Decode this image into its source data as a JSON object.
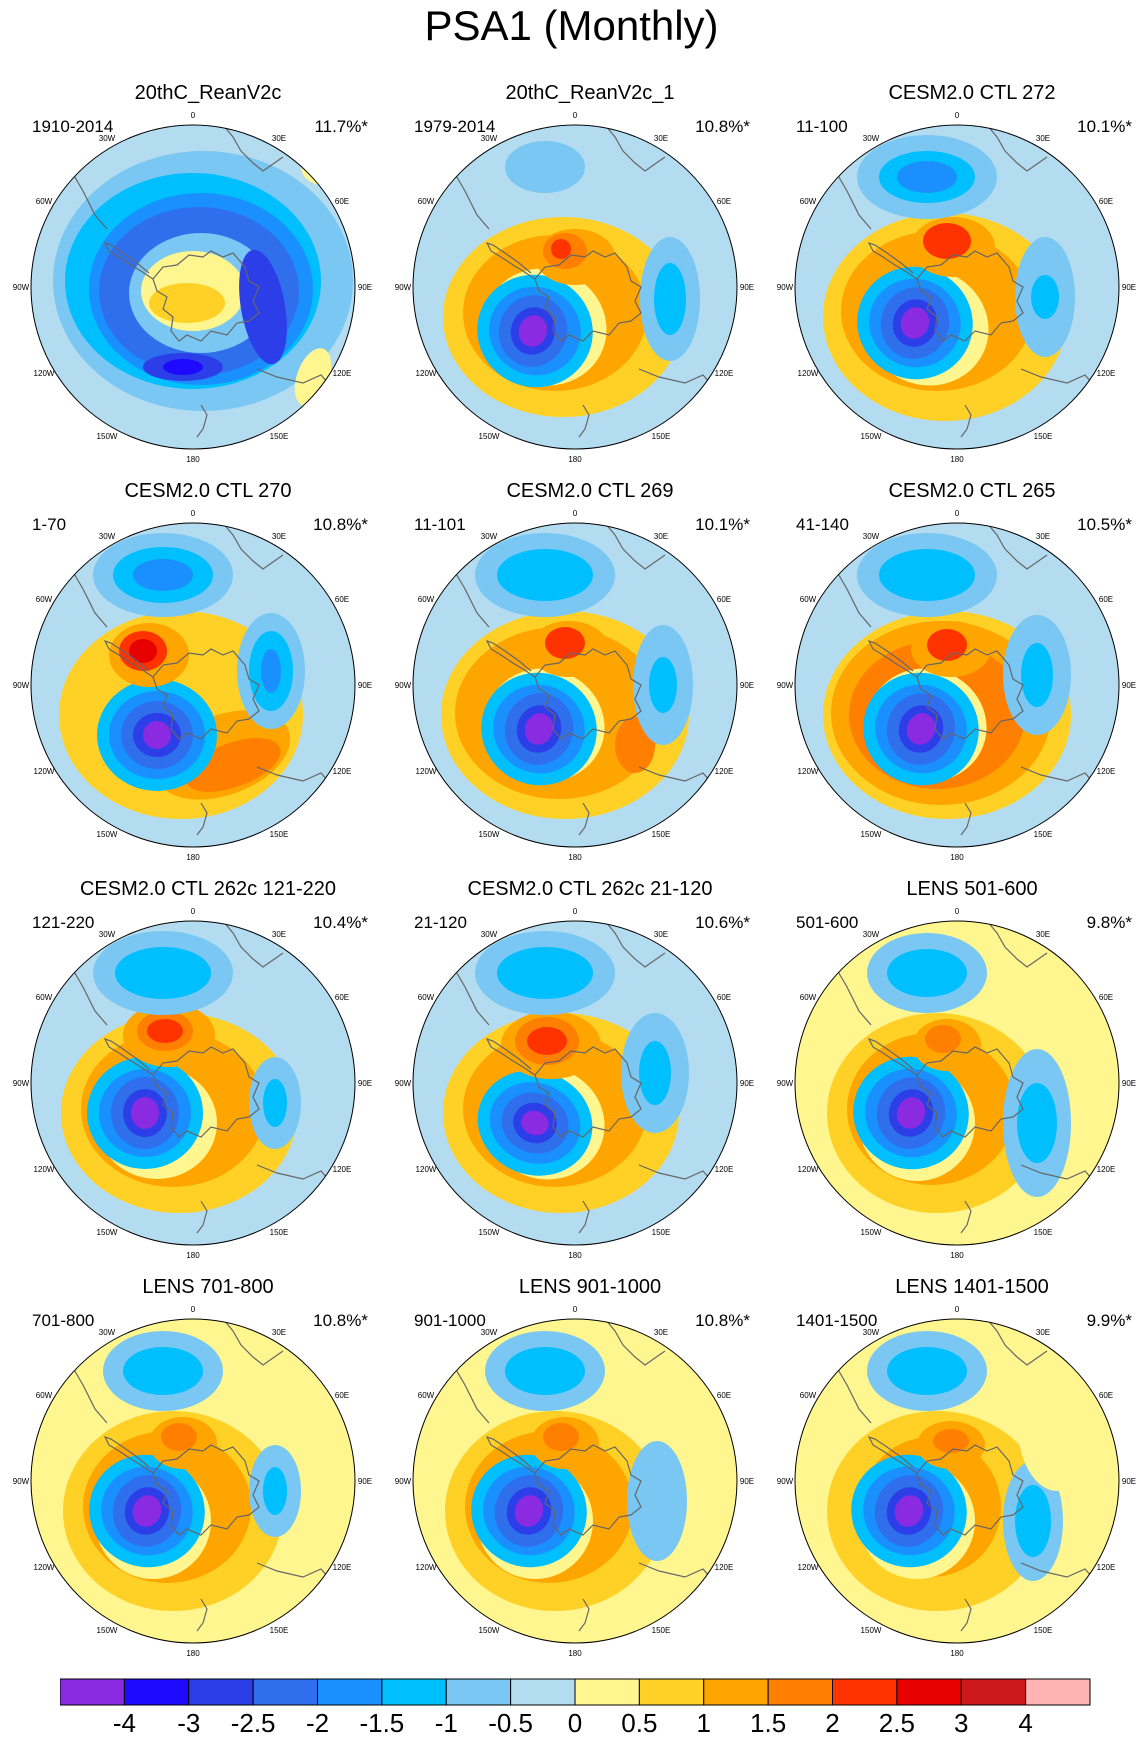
{
  "figure": {
    "title": "PSA1 (Monthly)",
    "longitude_labels": [
      "0",
      "30E",
      "60E",
      "90E",
      "120E",
      "150E",
      "180",
      "150W",
      "120W",
      "90W",
      "60W",
      "30W"
    ]
  },
  "panels": [
    {
      "title": "20thC_ReanV2c",
      "period": "1910-2014",
      "percent": "11.7%*"
    },
    {
      "title": "20thC_ReanV2c_1",
      "period": "1979-2014",
      "percent": "10.8%*"
    },
    {
      "title": "CESM2.0 CTL 272",
      "period": "11-100",
      "percent": "10.1%*"
    },
    {
      "title": "CESM2.0 CTL 270",
      "period": "1-70",
      "percent": "10.8%*"
    },
    {
      "title": "CESM2.0 CTL 269",
      "period": "11-101",
      "percent": "10.1%*"
    },
    {
      "title": "CESM2.0 CTL 265",
      "period": "41-140",
      "percent": "10.5%*"
    },
    {
      "title": "CESM2.0 CTL 262c 121-220",
      "period": "121-220",
      "percent": "10.4%*"
    },
    {
      "title": "CESM2.0 CTL 262c 21-120",
      "period": "21-120",
      "percent": "10.6%*"
    },
    {
      "title": "LENS 501-600",
      "period": "501-600",
      "percent": "9.8%*"
    },
    {
      "title": "LENS 701-800",
      "period": "701-800",
      "percent": "10.8%*"
    },
    {
      "title": "LENS 901-1000",
      "period": "901-1000",
      "percent": "10.8%*"
    },
    {
      "title": "LENS 1401-1500",
      "period": "1401-1500",
      "percent": "9.9%*"
    }
  ],
  "colorbar": {
    "labels": [
      "-4",
      "-3",
      "-2.5",
      "-2",
      "-1.5",
      "-1",
      "-0.5",
      "0",
      "0.5",
      "1",
      "1.5",
      "2",
      "2.5",
      "3",
      "4"
    ],
    "colors": [
      "#8a2be2",
      "#1e0aff",
      "#2c3ee8",
      "#2f6fec",
      "#1a90ff",
      "#00bfff",
      "#79c7f2",
      "#b3dcf0",
      "#fff68f",
      "#ffd127",
      "#ffa500",
      "#ff7f00",
      "#ff3300",
      "#e60000",
      "#cc1a1a",
      "#ffb3b3"
    ]
  }
}
